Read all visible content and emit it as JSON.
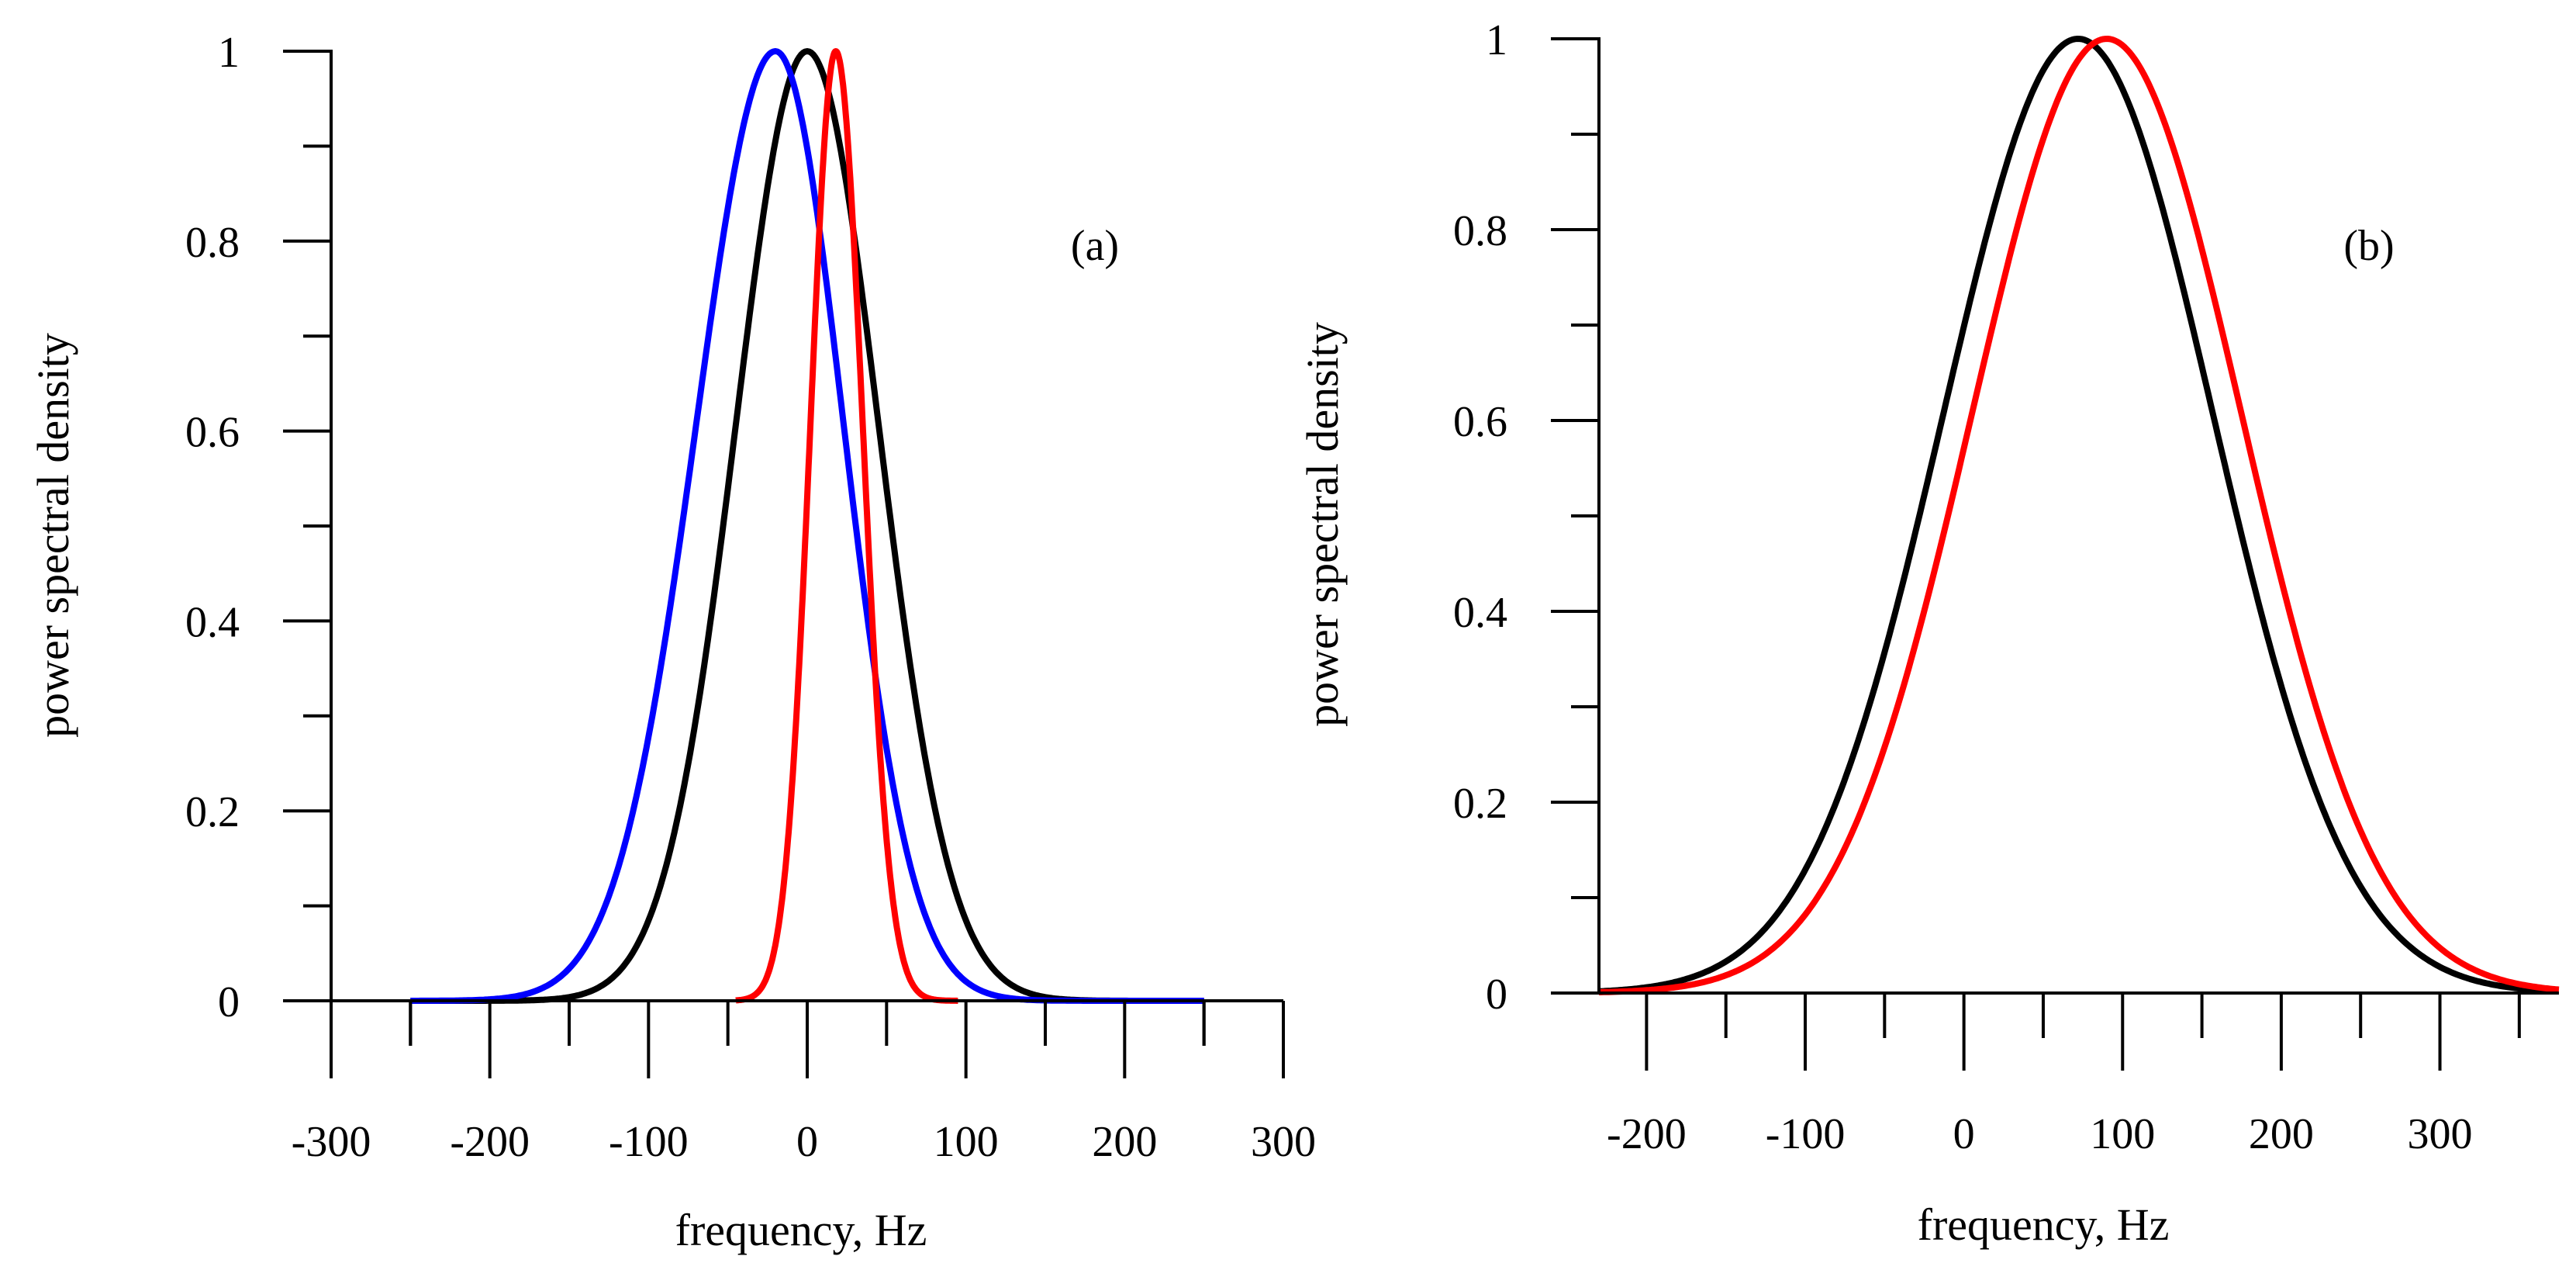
{
  "chart_data": [
    {
      "type": "line",
      "panel_label": "(a)",
      "xlabel": "frequency, Hz",
      "ylabel": "power spectral density",
      "xlim": [
        -300,
        300
      ],
      "ylim": [
        0,
        1
      ],
      "x_ticks": [
        -300,
        -200,
        -100,
        0,
        100,
        200,
        300
      ],
      "x_tick_labels": [
        "-300",
        "-200",
        "-100",
        "0",
        "100",
        "200",
        "300"
      ],
      "y_ticks": [
        0,
        0.2,
        0.4,
        0.6,
        0.8,
        1
      ],
      "y_tick_labels": [
        "0",
        "0.2",
        "0.4",
        "0.6",
        "0.8",
        "1"
      ],
      "grid": false,
      "series": [
        {
          "name": "black",
          "color": "#000000",
          "center": 0,
          "sigma_left": 45,
          "sigma_right": 45,
          "x_range": [
            -250,
            250
          ]
        },
        {
          "name": "blue",
          "color": "#0000ff",
          "center": -20,
          "sigma_left": 50,
          "sigma_right": 43,
          "x_range": [
            -250,
            250
          ]
        },
        {
          "name": "red",
          "color": "#ff0000",
          "center": 18,
          "sigma_left": 16,
          "sigma_right": 17,
          "x_range": [
            -45,
            95
          ]
        }
      ]
    },
    {
      "type": "line",
      "panel_label": "(b)",
      "xlabel": "frequency, Hz",
      "ylabel": "power spectral density",
      "xlim": [
        -230,
        375
      ],
      "ylim": [
        0,
        1
      ],
      "x_ticks": [
        -200,
        -100,
        0,
        100,
        200,
        300
      ],
      "x_tick_labels": [
        "-200",
        "-100",
        "0",
        "100",
        "200",
        "300"
      ],
      "y_ticks": [
        0,
        0.2,
        0.4,
        0.6,
        0.8,
        1
      ],
      "y_tick_labels": [
        "0",
        "0.2",
        "0.4",
        "0.6",
        "0.8",
        "1"
      ],
      "grid": false,
      "series": [
        {
          "name": "black",
          "color": "#000000",
          "center": 72,
          "sigma": 85,
          "x_range": [
            -230,
            370
          ]
        },
        {
          "name": "red",
          "color": "#ff0000",
          "center": 90,
          "sigma": 85,
          "x_range": [
            -230,
            375
          ]
        }
      ]
    }
  ]
}
